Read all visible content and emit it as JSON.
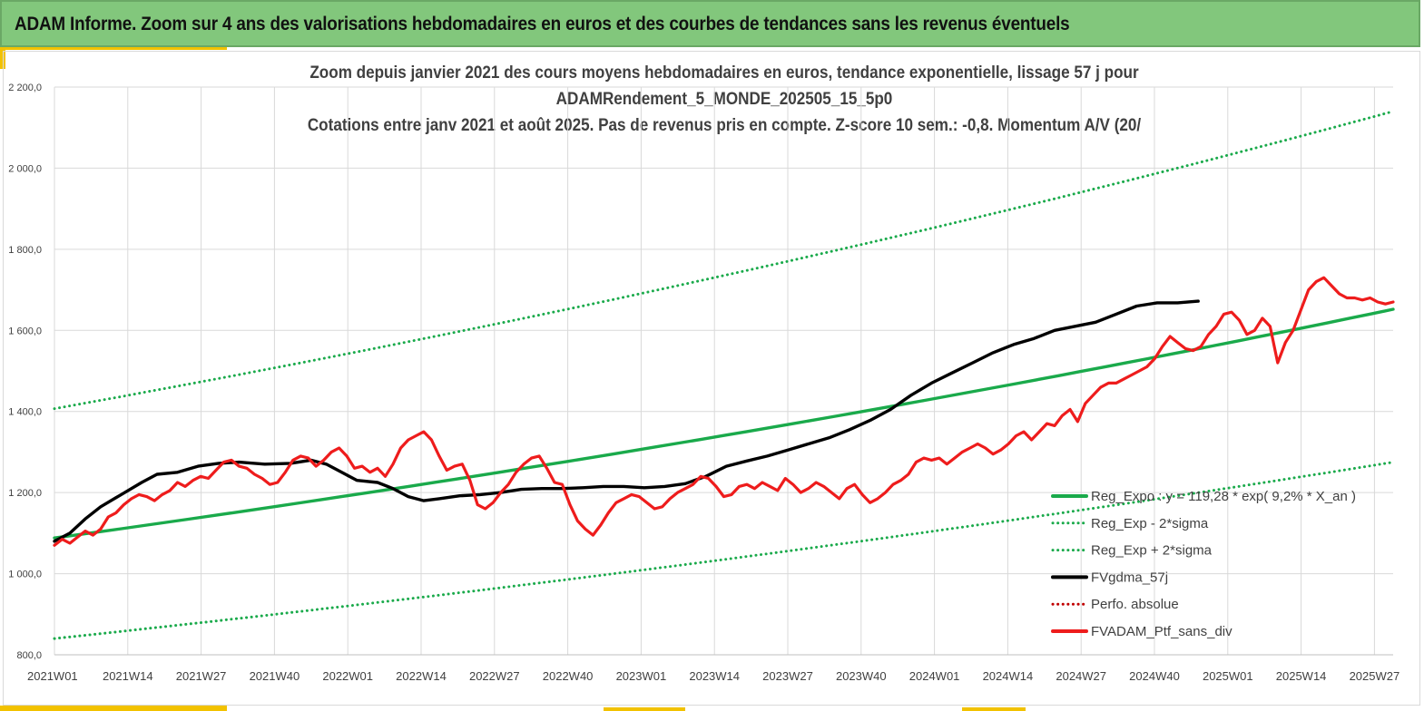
{
  "header": {
    "title": "ADAM Informe. Zoom sur 4 ans des valorisations hebdomadaires en euros et des courbes de tendances sans les revenus éventuels"
  },
  "chart_data": {
    "type": "line",
    "title_lines": [
      "Zoom depuis janvier 2021 des cours moyens hebdomadaires  en euros, tendance exponentielle, lissage 57 j pour",
      "ADAMRendement_5_MONDE_202505_15_5p0",
      "Cotations  entre janv 2021 et août 2025. Pas de revenus pris en compte. Z-score 10 sem.: -0,8. Momentum A/V (20/"
    ],
    "ylim": [
      800,
      2200
    ],
    "y_ticks": [
      "800,0",
      "1 000,0",
      "1 200,0",
      "1 400,0",
      "1 600,0",
      "1 800,0",
      "2 000,0",
      "2 200,0"
    ],
    "y_tick_values": [
      800,
      1000,
      1200,
      1400,
      1600,
      1800,
      2000,
      2200
    ],
    "x_ticks": [
      "2021W01",
      "2021W14",
      "2021W27",
      "2021W40",
      "2022W01",
      "2022W14",
      "2022W27",
      "2022W40",
      "2023W01",
      "2023W14",
      "2023W27",
      "2023W40",
      "2024W01",
      "2024W14",
      "2024W27",
      "2024W40",
      "2025W01",
      "2025W14",
      "2025W27"
    ],
    "x_week_range": [
      0,
      238
    ],
    "grid": true,
    "legend_position": "bottom-right",
    "colors": {
      "green": "#1aaa4b",
      "black": "#000000",
      "red": "#ee1c1c"
    },
    "series": [
      {
        "name": "Reg_Expo : y = 119,28 * exp( 9,2% *  X_an )",
        "style": "solid",
        "color": "#1aaa4b",
        "start": 1088,
        "end": 1652
      },
      {
        "name": "Reg_Exp - 2*sigma",
        "style": "dotted",
        "color": "#1aaa4b",
        "start": 840,
        "end": 1275
      },
      {
        "name": "Reg_Exp + 2*sigma",
        "style": "dotted",
        "color": "#1aaa4b",
        "start": 1407,
        "end": 2140
      },
      {
        "name": "FVgdma_57j",
        "style": "solid",
        "color": "#000000",
        "points": [
          [
            0,
            1080
          ],
          [
            6,
            1100
          ],
          [
            12,
            1135
          ],
          [
            18,
            1165
          ],
          [
            26,
            1195
          ],
          [
            34,
            1225
          ],
          [
            40,
            1245
          ],
          [
            48,
            1250
          ],
          [
            56,
            1265
          ],
          [
            64,
            1272
          ],
          [
            72,
            1275
          ],
          [
            82,
            1270
          ],
          [
            92,
            1272
          ],
          [
            100,
            1280
          ],
          [
            106,
            1270
          ],
          [
            112,
            1250
          ],
          [
            118,
            1230
          ],
          [
            126,
            1225
          ],
          [
            132,
            1210
          ],
          [
            138,
            1190
          ],
          [
            144,
            1180
          ],
          [
            150,
            1185
          ],
          [
            158,
            1192
          ],
          [
            166,
            1195
          ],
          [
            174,
            1200
          ],
          [
            182,
            1208
          ],
          [
            190,
            1210
          ],
          [
            198,
            1210
          ],
          [
            206,
            1212
          ],
          [
            214,
            1215
          ],
          [
            222,
            1215
          ],
          [
            230,
            1212
          ],
          [
            238,
            1215
          ],
          [
            246,
            1222
          ],
          [
            254,
            1240
          ],
          [
            262,
            1265
          ],
          [
            270,
            1278
          ],
          [
            278,
            1290
          ],
          [
            286,
            1305
          ],
          [
            294,
            1320
          ],
          [
            302,
            1335
          ],
          [
            310,
            1355
          ],
          [
            318,
            1378
          ],
          [
            326,
            1405
          ],
          [
            334,
            1440
          ],
          [
            342,
            1470
          ],
          [
            350,
            1495
          ],
          [
            358,
            1520
          ],
          [
            366,
            1545
          ],
          [
            374,
            1565
          ],
          [
            382,
            1580
          ],
          [
            390,
            1600
          ],
          [
            398,
            1610
          ],
          [
            406,
            1620
          ],
          [
            414,
            1640
          ],
          [
            422,
            1660
          ],
          [
            430,
            1668
          ],
          [
            438,
            1668
          ],
          [
            446,
            1672
          ]
        ]
      },
      {
        "name": "Perfo. absolue",
        "style": "dotted",
        "color": "#c00000"
      },
      {
        "name": "FVADAM_Ptf_sans_div",
        "style": "solid",
        "color": "#ee1c1c",
        "points": [
          [
            0,
            1070
          ],
          [
            3,
            1085
          ],
          [
            6,
            1075
          ],
          [
            9,
            1090
          ],
          [
            12,
            1105
          ],
          [
            15,
            1095
          ],
          [
            18,
            1110
          ],
          [
            21,
            1140
          ],
          [
            24,
            1150
          ],
          [
            27,
            1170
          ],
          [
            30,
            1185
          ],
          [
            33,
            1195
          ],
          [
            36,
            1190
          ],
          [
            39,
            1180
          ],
          [
            42,
            1195
          ],
          [
            45,
            1205
          ],
          [
            48,
            1225
          ],
          [
            51,
            1215
          ],
          [
            54,
            1230
          ],
          [
            57,
            1240
          ],
          [
            60,
            1235
          ],
          [
            63,
            1255
          ],
          [
            66,
            1275
          ],
          [
            69,
            1280
          ],
          [
            72,
            1265
          ],
          [
            75,
            1260
          ],
          [
            78,
            1245
          ],
          [
            81,
            1235
          ],
          [
            84,
            1220
          ],
          [
            87,
            1225
          ],
          [
            90,
            1250
          ],
          [
            93,
            1280
          ],
          [
            96,
            1290
          ],
          [
            99,
            1285
          ],
          [
            102,
            1265
          ],
          [
            105,
            1280
          ],
          [
            108,
            1300
          ],
          [
            111,
            1310
          ],
          [
            114,
            1290
          ],
          [
            117,
            1260
          ],
          [
            120,
            1265
          ],
          [
            123,
            1250
          ],
          [
            126,
            1260
          ],
          [
            129,
            1240
          ],
          [
            132,
            1270
          ],
          [
            135,
            1310
          ],
          [
            138,
            1330
          ],
          [
            141,
            1340
          ],
          [
            144,
            1350
          ],
          [
            147,
            1330
          ],
          [
            150,
            1290
          ],
          [
            153,
            1255
          ],
          [
            156,
            1265
          ],
          [
            159,
            1270
          ],
          [
            162,
            1230
          ],
          [
            165,
            1170
          ],
          [
            168,
            1160
          ],
          [
            171,
            1175
          ],
          [
            174,
            1200
          ],
          [
            177,
            1220
          ],
          [
            180,
            1250
          ],
          [
            183,
            1270
          ],
          [
            186,
            1285
          ],
          [
            189,
            1290
          ],
          [
            192,
            1260
          ],
          [
            195,
            1225
          ],
          [
            198,
            1220
          ],
          [
            201,
            1170
          ],
          [
            204,
            1130
          ],
          [
            207,
            1110
          ],
          [
            210,
            1095
          ],
          [
            213,
            1120
          ],
          [
            216,
            1150
          ],
          [
            219,
            1175
          ],
          [
            222,
            1185
          ],
          [
            225,
            1195
          ],
          [
            228,
            1190
          ],
          [
            231,
            1175
          ],
          [
            234,
            1160
          ],
          [
            237,
            1165
          ],
          [
            240,
            1185
          ],
          [
            243,
            1200
          ],
          [
            246,
            1210
          ],
          [
            249,
            1220
          ],
          [
            252,
            1240
          ],
          [
            255,
            1235
          ],
          [
            258,
            1215
          ],
          [
            261,
            1190
          ],
          [
            264,
            1195
          ],
          [
            267,
            1215
          ],
          [
            270,
            1220
          ],
          [
            273,
            1210
          ],
          [
            276,
            1225
          ],
          [
            279,
            1215
          ],
          [
            282,
            1205
          ],
          [
            285,
            1235
          ],
          [
            288,
            1220
          ],
          [
            291,
            1200
          ],
          [
            294,
            1210
          ],
          [
            297,
            1225
          ],
          [
            300,
            1215
          ],
          [
            303,
            1200
          ],
          [
            306,
            1185
          ],
          [
            309,
            1210
          ],
          [
            312,
            1220
          ],
          [
            315,
            1195
          ],
          [
            318,
            1175
          ],
          [
            321,
            1185
          ],
          [
            324,
            1200
          ],
          [
            327,
            1220
          ],
          [
            330,
            1230
          ],
          [
            333,
            1245
          ],
          [
            336,
            1275
          ],
          [
            339,
            1285
          ],
          [
            342,
            1280
          ],
          [
            345,
            1285
          ],
          [
            348,
            1270
          ],
          [
            351,
            1285
          ],
          [
            354,
            1300
          ],
          [
            357,
            1310
          ],
          [
            360,
            1320
          ],
          [
            363,
            1310
          ],
          [
            366,
            1295
          ],
          [
            369,
            1305
          ],
          [
            372,
            1320
          ],
          [
            375,
            1340
          ],
          [
            378,
            1350
          ],
          [
            381,
            1330
          ],
          [
            384,
            1350
          ],
          [
            387,
            1370
          ],
          [
            390,
            1365
          ],
          [
            393,
            1390
          ],
          [
            396,
            1405
          ],
          [
            399,
            1375
          ],
          [
            402,
            1420
          ],
          [
            405,
            1440
          ],
          [
            408,
            1460
          ],
          [
            411,
            1470
          ],
          [
            414,
            1470
          ],
          [
            417,
            1480
          ],
          [
            420,
            1490
          ],
          [
            423,
            1500
          ],
          [
            426,
            1510
          ],
          [
            429,
            1530
          ],
          [
            432,
            1560
          ],
          [
            435,
            1585
          ],
          [
            438,
            1570
          ],
          [
            441,
            1555
          ],
          [
            444,
            1550
          ],
          [
            447,
            1560
          ],
          [
            450,
            1590
          ],
          [
            453,
            1610
          ],
          [
            456,
            1640
          ],
          [
            459,
            1645
          ],
          [
            462,
            1625
          ],
          [
            465,
            1590
          ],
          [
            468,
            1600
          ],
          [
            471,
            1630
          ],
          [
            474,
            1610
          ],
          [
            477,
            1520
          ],
          [
            480,
            1570
          ],
          [
            483,
            1600
          ],
          [
            486,
            1650
          ],
          [
            489,
            1700
          ],
          [
            492,
            1720
          ],
          [
            495,
            1730
          ],
          [
            498,
            1710
          ],
          [
            501,
            1690
          ],
          [
            504,
            1680
          ],
          [
            507,
            1680
          ],
          [
            510,
            1675
          ],
          [
            513,
            1680
          ],
          [
            516,
            1670
          ],
          [
            519,
            1665
          ],
          [
            522,
            1670
          ]
        ]
      }
    ]
  }
}
